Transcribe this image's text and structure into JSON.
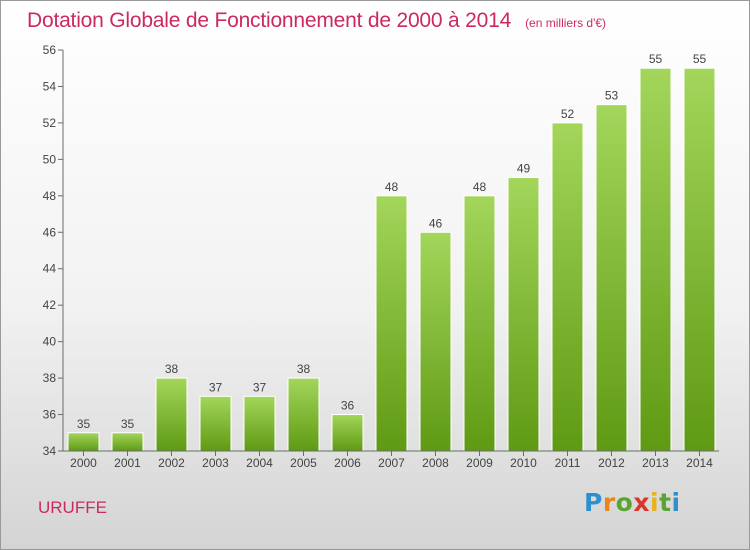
{
  "title": "Dotation Globale de Fonctionnement de 2000 à 2014",
  "unit": "(en milliers d'€)",
  "commune": "URUFFE",
  "logo": {
    "letters": [
      "P",
      "r",
      "o",
      "x",
      "i",
      "t",
      "i"
    ],
    "colors": [
      "#2e8fcf",
      "#e8861c",
      "#5aa532",
      "#d9352a",
      "#e8b21c",
      "#5aa532",
      "#2e8fcf"
    ]
  },
  "colors": {
    "title": "#cc2a5e",
    "bar_light": "#a3d65b",
    "bar_dark": "#5f9a14"
  },
  "chart_data": {
    "type": "bar",
    "title": "Dotation Globale de Fonctionnement de 2000 à 2014",
    "subtitle": "(en milliers d'€)",
    "categories": [
      "2000",
      "2001",
      "2002",
      "2003",
      "2004",
      "2005",
      "2006",
      "2007",
      "2008",
      "2009",
      "2010",
      "2011",
      "2012",
      "2013",
      "2014"
    ],
    "values": [
      35,
      35,
      38,
      37,
      37,
      38,
      36,
      48,
      46,
      48,
      49,
      52,
      53,
      55,
      55
    ],
    "ylim": [
      34,
      56
    ],
    "yticks": [
      34,
      36,
      38,
      40,
      42,
      44,
      46,
      48,
      50,
      52,
      54,
      56
    ],
    "xlabel": "",
    "ylabel": "",
    "grid": false,
    "legend": "none"
  }
}
